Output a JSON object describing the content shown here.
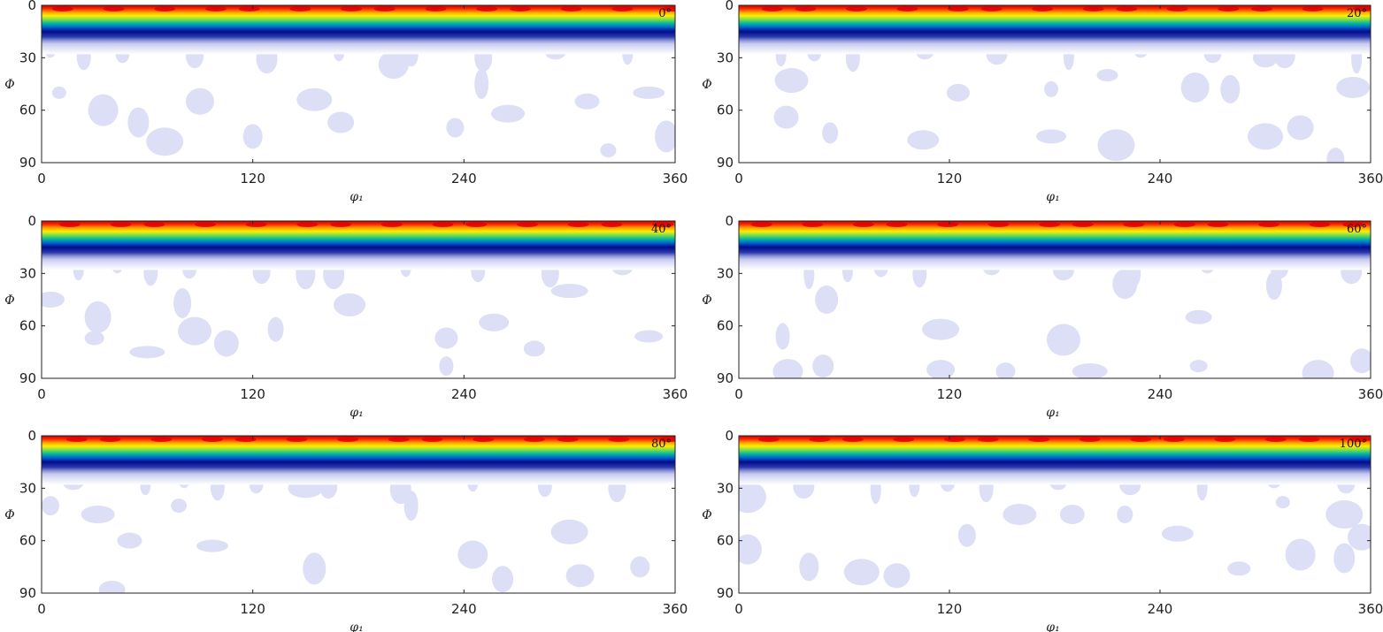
{
  "chart_data": [
    {
      "type": "heatmap",
      "section_label": "0°",
      "xlabel": "φ₁",
      "ylabel": "Φ",
      "xlim": [
        0,
        360
      ],
      "ylim": [
        0,
        90
      ],
      "xticks": [
        "0",
        "120",
        "240",
        "360"
      ],
      "yticks": [
        "0",
        "30",
        "60",
        "90"
      ],
      "band": {
        "peak_phi": 2,
        "low_phi": 15,
        "spread_phi": 24
      },
      "blobs": [
        [
          10,
          50
        ],
        [
          35,
          60
        ],
        [
          55,
          67
        ],
        [
          70,
          78
        ],
        [
          90,
          55
        ],
        [
          120,
          75
        ],
        [
          155,
          54
        ],
        [
          170,
          67
        ],
        [
          235,
          70
        ],
        [
          265,
          62
        ],
        [
          310,
          55
        ],
        [
          322,
          83
        ],
        [
          345,
          50
        ],
        [
          355,
          75
        ],
        [
          250,
          45
        ],
        [
          200,
          34
        ]
      ]
    },
    {
      "type": "heatmap",
      "section_label": "20°",
      "xlabel": "φ₁",
      "ylabel": "Φ",
      "xlim": [
        0,
        360
      ],
      "ylim": [
        0,
        90
      ],
      "xticks": [
        "0",
        "120",
        "240",
        "360"
      ],
      "yticks": [
        "0",
        "30",
        "60",
        "90"
      ],
      "band": {
        "peak_phi": 2,
        "low_phi": 15,
        "spread_phi": 24
      },
      "blobs": [
        [
          30,
          43
        ],
        [
          27,
          64
        ],
        [
          52,
          73
        ],
        [
          105,
          77
        ],
        [
          125,
          50
        ],
        [
          178,
          48
        ],
        [
          178,
          75
        ],
        [
          210,
          40
        ],
        [
          215,
          80
        ],
        [
          260,
          47
        ],
        [
          280,
          48
        ],
        [
          300,
          75
        ],
        [
          320,
          70
        ],
        [
          340,
          88
        ],
        [
          350,
          47
        ],
        [
          300,
          30
        ]
      ]
    },
    {
      "type": "heatmap",
      "section_label": "40°",
      "xlabel": "φ₁",
      "ylabel": "Φ",
      "xlim": [
        0,
        360
      ],
      "ylim": [
        0,
        90
      ],
      "xticks": [
        "0",
        "120",
        "240",
        "360"
      ],
      "yticks": [
        "0",
        "30",
        "60",
        "90"
      ],
      "band": {
        "peak_phi": 2,
        "low_phi": 15,
        "spread_phi": 24
      },
      "blobs": [
        [
          5,
          45
        ],
        [
          30,
          67
        ],
        [
          60,
          75
        ],
        [
          32,
          55
        ],
        [
          80,
          47
        ],
        [
          87,
          63
        ],
        [
          105,
          70
        ],
        [
          133,
          62
        ],
        [
          175,
          48
        ],
        [
          230,
          67
        ],
        [
          230,
          83
        ],
        [
          257,
          58
        ],
        [
          280,
          73
        ],
        [
          300,
          40
        ],
        [
          345,
          66
        ],
        [
          150,
          30
        ]
      ]
    },
    {
      "type": "heatmap",
      "section_label": "60°",
      "xlabel": "φ₁",
      "ylabel": "Φ",
      "xlim": [
        0,
        360
      ],
      "ylim": [
        0,
        90
      ],
      "xticks": [
        "0",
        "120",
        "240",
        "360"
      ],
      "yticks": [
        "0",
        "30",
        "60",
        "90"
      ],
      "band": {
        "peak_phi": 2,
        "low_phi": 15,
        "spread_phi": 24
      },
      "blobs": [
        [
          50,
          45
        ],
        [
          25,
          66
        ],
        [
          28,
          86
        ],
        [
          48,
          83
        ],
        [
          115,
          62
        ],
        [
          115,
          85
        ],
        [
          152,
          86
        ],
        [
          200,
          86
        ],
        [
          262,
          55
        ],
        [
          262,
          83
        ],
        [
          185,
          68
        ],
        [
          220,
          36
        ],
        [
          305,
          37
        ],
        [
          330,
          87
        ],
        [
          355,
          80
        ]
      ]
    },
    {
      "type": "heatmap",
      "section_label": "80°",
      "xlabel": "φ₁",
      "ylabel": "Φ",
      "xlim": [
        0,
        360
      ],
      "ylim": [
        0,
        90
      ],
      "xticks": [
        "0",
        "120",
        "240",
        "360"
      ],
      "yticks": [
        "0",
        "30",
        "60",
        "90"
      ],
      "band": {
        "peak_phi": 2,
        "low_phi": 15,
        "spread_phi": 24
      },
      "blobs": [
        [
          5,
          40
        ],
        [
          32,
          45
        ],
        [
          50,
          60
        ],
        [
          78,
          40
        ],
        [
          97,
          63
        ],
        [
          155,
          76
        ],
        [
          210,
          40
        ],
        [
          245,
          68
        ],
        [
          262,
          82
        ],
        [
          300,
          55
        ],
        [
          306,
          80
        ],
        [
          340,
          75
        ],
        [
          150,
          30
        ],
        [
          40,
          88
        ]
      ]
    },
    {
      "type": "heatmap",
      "section_label": "100°",
      "xlabel": "φ₁",
      "ylabel": "Φ",
      "xlim": [
        0,
        360
      ],
      "ylim": [
        0,
        90
      ],
      "xticks": [
        "0",
        "120",
        "240",
        "360"
      ],
      "yticks": [
        "0",
        "30",
        "60",
        "90"
      ],
      "band": {
        "peak_phi": 2,
        "low_phi": 15,
        "spread_phi": 24
      },
      "blobs": [
        [
          5,
          35
        ],
        [
          5,
          65
        ],
        [
          40,
          75
        ],
        [
          70,
          78
        ],
        [
          90,
          80
        ],
        [
          130,
          57
        ],
        [
          160,
          45
        ],
        [
          190,
          45
        ],
        [
          220,
          45
        ],
        [
          250,
          56
        ],
        [
          285,
          76
        ],
        [
          310,
          38
        ],
        [
          320,
          68
        ],
        [
          345,
          70
        ],
        [
          345,
          45
        ],
        [
          355,
          58
        ]
      ]
    }
  ]
}
